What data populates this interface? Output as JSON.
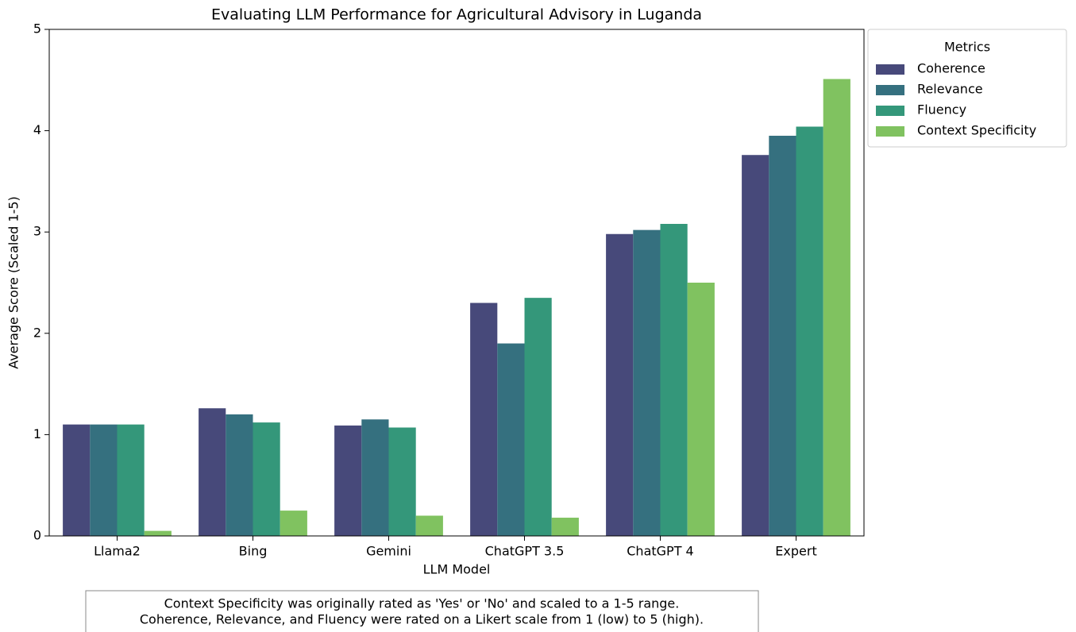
{
  "chart_data": {
    "type": "bar",
    "title": "Evaluating LLM Performance for Agricultural Advisory in Luganda",
    "xlabel": "LLM Model",
    "ylabel": "Average Score (Scaled 1-5)",
    "categories": [
      "Llama2",
      "Bing",
      "Gemini",
      "ChatGPT 3.5",
      "ChatGPT 4",
      "Expert"
    ],
    "series": [
      {
        "name": "Coherence",
        "color": "#47497a",
        "values": [
          1.1,
          1.26,
          1.09,
          2.3,
          2.98,
          3.76
        ]
      },
      {
        "name": "Relevance",
        "color": "#35707f",
        "values": [
          1.1,
          1.2,
          1.15,
          1.9,
          3.02,
          3.95
        ]
      },
      {
        "name": "Fluency",
        "color": "#34977a",
        "values": [
          1.1,
          1.12,
          1.07,
          2.35,
          3.08,
          4.04
        ]
      },
      {
        "name": "Context Specificity",
        "color": "#80c260",
        "values": [
          0.05,
          0.25,
          0.2,
          0.18,
          2.5,
          4.51
        ]
      }
    ],
    "ylim": [
      0,
      5
    ],
    "yticks": [
      0,
      1,
      2,
      3,
      4,
      5
    ],
    "grid": false,
    "legend_title": "Metrics",
    "legend_loc": "outside upper right",
    "annotation": [
      "Context Specificity was originally rated as 'Yes' or 'No' and scaled to a 1-5 range.",
      "Coherence, Relevance, and Fluency were rated on a Likert scale from 1 (low) to 5 (high)."
    ]
  }
}
